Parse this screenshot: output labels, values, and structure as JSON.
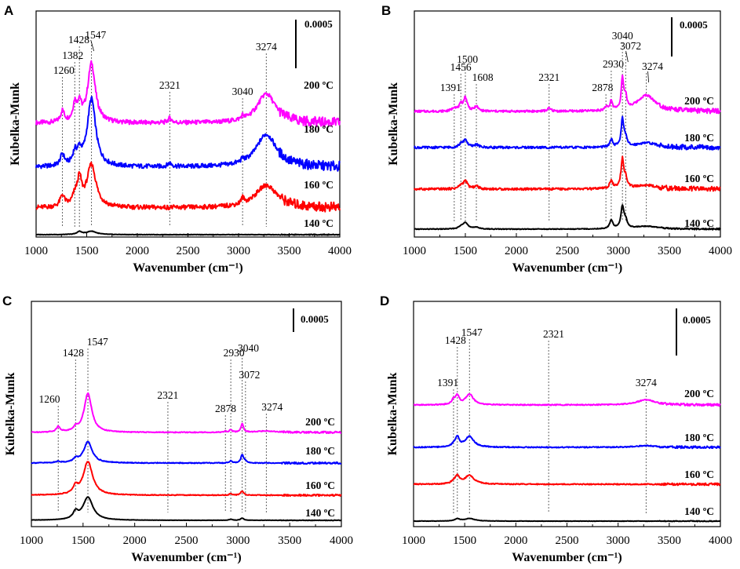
{
  "chart_data": [
    {
      "panel": "A",
      "type": "line",
      "xlabel": "Wavenumber (cm⁻¹)",
      "ylabel": "Kubelka-Munk",
      "xlim": [
        1000,
        4000
      ],
      "xticks": [
        1000,
        1500,
        2000,
        2500,
        3000,
        3500,
        4000
      ],
      "scale_bar": "0.0005",
      "peak_markers": [
        "1260",
        "1382",
        "1428",
        "1547",
        "2321",
        "3040",
        "3274"
      ],
      "series": [
        {
          "name": "200 ºC",
          "color": "#ff00ff",
          "offset": 0.00105,
          "peaks": [
            [
              1260,
              0.0002
            ],
            [
              1382,
              0.0003
            ],
            [
              1428,
              0.0003
            ],
            [
              1547,
              0.00105
            ],
            [
              2321,
              8e-05
            ],
            [
              3040,
              6e-05
            ],
            [
              3274,
              0.00052
            ]
          ]
        },
        {
          "name": "180 ºC",
          "color": "#0000ff",
          "offset": 0.00068,
          "peaks": [
            [
              1260,
              0.0002
            ],
            [
              1382,
              0.0002
            ],
            [
              1428,
              0.0002
            ],
            [
              1547,
              0.0012
            ],
            [
              2321,
              6e-05
            ],
            [
              3040,
              5e-05
            ],
            [
              3274,
              0.00058
            ]
          ]
        },
        {
          "name": "160 ºC",
          "color": "#ff0000",
          "offset": 0.00022,
          "peaks": [
            [
              1260,
              0.0002
            ],
            [
              1382,
              0.00015
            ],
            [
              1428,
              0.00045
            ],
            [
              1547,
              0.00075
            ],
            [
              3040,
              0.0001
            ],
            [
              3274,
              0.0004
            ]
          ]
        },
        {
          "name": "140 ºC",
          "color": "#000000",
          "offset": 0.0,
          "peaks": [
            [
              1428,
              5e-05
            ],
            [
              1547,
              6e-05
            ]
          ]
        }
      ]
    },
    {
      "panel": "B",
      "type": "line",
      "xlabel": "Wavenumber (cm⁻¹)",
      "ylabel": "Kubelka-Munk",
      "xlim": [
        1000,
        4000
      ],
      "xticks": [
        1000,
        1500,
        2000,
        2500,
        3000,
        3500,
        4000
      ],
      "scale_bar": "0.0005",
      "peak_markers": [
        "1391",
        "1456",
        "1500",
        "1608",
        "2321",
        "2878",
        "2930",
        "3040",
        "3072",
        "3274"
      ],
      "series": [
        {
          "name": "200 ºC",
          "color": "#ff00ff",
          "offset": 0.00066,
          "peaks": [
            [
              1391,
              4e-05
            ],
            [
              1456,
              6e-05
            ],
            [
              1500,
              0.00014
            ],
            [
              1608,
              5e-05
            ],
            [
              2321,
              3e-05
            ],
            [
              2878,
              4e-05
            ],
            [
              2930,
              0.0001
            ],
            [
              3040,
              0.00033
            ],
            [
              3072,
              0.00012
            ],
            [
              3274,
              0.00017
            ]
          ]
        },
        {
          "name": "180 ºC",
          "color": "#0000ff",
          "offset": 0.00043,
          "peaks": [
            [
              1456,
              3e-05
            ],
            [
              1500,
              8e-05
            ],
            [
              1608,
              3e-05
            ],
            [
              2930,
              8e-05
            ],
            [
              3040,
              0.0003
            ],
            [
              3072,
              8e-05
            ],
            [
              3274,
              5e-05
            ]
          ]
        },
        {
          "name": "160 ºC",
          "color": "#ff0000",
          "offset": 0.00021,
          "peaks": [
            [
              1456,
              3e-05
            ],
            [
              1500,
              8e-05
            ],
            [
              1608,
              3e-05
            ],
            [
              2930,
              9e-05
            ],
            [
              3040,
              0.00031
            ],
            [
              3072,
              9e-05
            ],
            [
              3274,
              4e-05
            ]
          ]
        },
        {
          "name": "140 ºC",
          "color": "#000000",
          "offset": 0.0,
          "peaks": [
            [
              1456,
              2e-05
            ],
            [
              1500,
              7e-05
            ],
            [
              1608,
              2e-05
            ],
            [
              2930,
              9e-05
            ],
            [
              3040,
              0.00023
            ],
            [
              3072,
              7e-05
            ],
            [
              3274,
              3e-05
            ]
          ]
        }
      ]
    },
    {
      "panel": "C",
      "type": "line",
      "xlabel": "Wavenumber (cm⁻¹)",
      "ylabel": "Kubelka-Munk",
      "xlim": [
        1000,
        4000
      ],
      "xticks": [
        1000,
        1500,
        2000,
        2500,
        3000,
        3500,
        4000
      ],
      "scale_bar": "0.0005",
      "peak_markers": [
        "1260",
        "1428",
        "1547",
        "2321",
        "2878",
        "2930",
        "3040",
        "3072",
        "3274"
      ],
      "series": [
        {
          "name": "200 ºC",
          "color": "#ff00ff",
          "offset": 0.0014,
          "peaks": [
            [
              1260,
              0.00015
            ],
            [
              1428,
              0.0001
            ],
            [
              1547,
              0.0011
            ],
            [
              2878,
              3e-05
            ],
            [
              2930,
              8e-05
            ],
            [
              3040,
              0.00025
            ],
            [
              3274,
              4e-05
            ]
          ]
        },
        {
          "name": "180 ºC",
          "color": "#0000ff",
          "offset": 0.0009,
          "peaks": [
            [
              1260,
              4e-05
            ],
            [
              1428,
              0.0001
            ],
            [
              1547,
              0.0006
            ],
            [
              2930,
              6e-05
            ],
            [
              3040,
              0.00023
            ],
            [
              3072,
              5e-05
            ]
          ]
        },
        {
          "name": "160 ºC",
          "color": "#ff0000",
          "offset": 0.0004,
          "peaks": [
            [
              1428,
              0.0002
            ],
            [
              1547,
              0.00095
            ],
            [
              2930,
              4e-05
            ],
            [
              3040,
              0.00012
            ]
          ]
        },
        {
          "name": "140 ºC",
          "color": "#000000",
          "offset": 0.0,
          "peaks": [
            [
              1428,
              0.0002
            ],
            [
              1547,
              0.00065
            ],
            [
              2930,
              3e-05
            ],
            [
              3040,
              6e-05
            ]
          ]
        }
      ]
    },
    {
      "panel": "D",
      "type": "line",
      "xlabel": "Wavenumber (cm⁻¹)",
      "ylabel": "Kubelka-Munk",
      "xlim": [
        1000,
        4000
      ],
      "xticks": [
        1000,
        1500,
        2000,
        2500,
        3000,
        3500,
        4000
      ],
      "scale_bar": "0.0005",
      "peak_markers": [
        "1391",
        "1428",
        "1547",
        "2321",
        "3274"
      ],
      "series": [
        {
          "name": "200 ºC",
          "color": "#ff00ff",
          "offset": 0.00135,
          "peaks": [
            [
              1391,
              0.0001
            ],
            [
              1428,
              0.0002
            ],
            [
              1547,
              0.00025
            ],
            [
              3274,
              0.00012
            ]
          ]
        },
        {
          "name": "180 ºC",
          "color": "#0000ff",
          "offset": 0.00088,
          "peaks": [
            [
              1391,
              5e-05
            ],
            [
              1428,
              0.00022
            ],
            [
              1547,
              0.00025
            ],
            [
              3274,
              4e-05
            ]
          ]
        },
        {
          "name": "160 ºC",
          "color": "#ff0000",
          "offset": 0.00045,
          "peaks": [
            [
              1391,
              4e-05
            ],
            [
              1428,
              0.00018
            ],
            [
              1547,
              0.0002
            ]
          ]
        },
        {
          "name": "140 ºC",
          "color": "#000000",
          "offset": 0.0,
          "peaks": [
            [
              1428,
              5e-05
            ],
            [
              1547,
              6e-05
            ]
          ]
        }
      ]
    }
  ]
}
